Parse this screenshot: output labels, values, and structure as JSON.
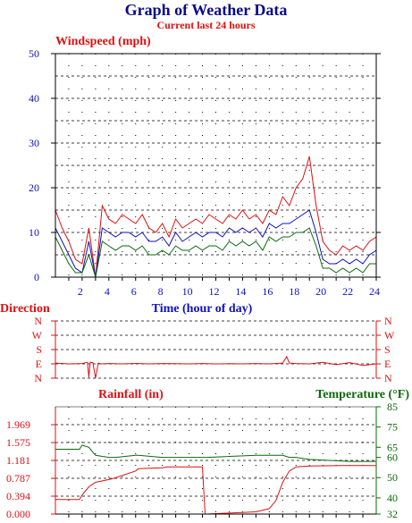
{
  "page": {
    "title": "Graph of Weather Data",
    "subtitle": "Current last 24 hours"
  },
  "colors": {
    "title": "#0a0a8a",
    "accent_red": "#dd1111",
    "blue": "#1010c0",
    "green": "#0a6a0a",
    "grid": "#000000"
  },
  "chart_data": [
    {
      "type": "line",
      "title": "Windspeed (mph)",
      "xlabel": "Time (hour of day)",
      "ylabel": "",
      "xlim": [
        0,
        24
      ],
      "ylim": [
        0,
        50
      ],
      "x_ticks": [
        2,
        4,
        6,
        8,
        10,
        12,
        14,
        16,
        18,
        20,
        22,
        24
      ],
      "y_ticks": [
        0,
        10,
        20,
        30,
        40,
        50
      ],
      "grid": true,
      "x": [
        0.0,
        0.5,
        1.0,
        1.5,
        2.0,
        2.5,
        3.0,
        3.5,
        4.0,
        4.5,
        5.0,
        5.5,
        6.0,
        6.5,
        7.0,
        7.5,
        8.0,
        8.5,
        9.0,
        9.5,
        10.0,
        10.5,
        11.0,
        11.5,
        12.0,
        12.5,
        13.0,
        13.5,
        14.0,
        14.5,
        15.0,
        15.5,
        16.0,
        16.5,
        17.0,
        17.5,
        18.0,
        18.5,
        19.0,
        19.5,
        20.0,
        20.5,
        21.0,
        21.5,
        22.0,
        22.5,
        23.0,
        23.5,
        24.0
      ],
      "series": [
        {
          "color": "red",
          "values": [
            15,
            11,
            8,
            4,
            3,
            11,
            0,
            16,
            13,
            12,
            14,
            13,
            12,
            14,
            11,
            10,
            12,
            9,
            13,
            11,
            12,
            13,
            12,
            14,
            13,
            12,
            14,
            13,
            15,
            13,
            14,
            12,
            15,
            14,
            18,
            16,
            20,
            22,
            27,
            16,
            8,
            6,
            5,
            7,
            6,
            7,
            6,
            8,
            9
          ]
        },
        {
          "color": "blue",
          "values": [
            11,
            8,
            5,
            2,
            1,
            8,
            0,
            11,
            10,
            9,
            10,
            10,
            9,
            10,
            8,
            8,
            9,
            7,
            10,
            8,
            9,
            10,
            9,
            10,
            10,
            9,
            11,
            10,
            11,
            10,
            11,
            9,
            12,
            11,
            12,
            12,
            13,
            14,
            15,
            10,
            4,
            3,
            3,
            4,
            3,
            4,
            3,
            5,
            6
          ]
        },
        {
          "color": "green",
          "values": [
            9,
            6,
            3,
            1,
            1,
            5,
            0,
            8,
            7,
            6,
            7,
            7,
            6,
            7,
            5,
            5,
            6,
            5,
            7,
            6,
            6,
            7,
            6,
            7,
            7,
            6,
            8,
            7,
            8,
            7,
            8,
            6,
            9,
            8,
            9,
            9,
            10,
            10,
            11,
            7,
            2,
            2,
            1,
            2,
            1,
            2,
            1,
            3,
            3
          ]
        }
      ]
    },
    {
      "type": "line",
      "title": "Direction",
      "ylabel": "",
      "y_ticks": [
        "N",
        "W",
        "S",
        "E",
        "N"
      ],
      "xlim": [
        0,
        24
      ],
      "grid": true,
      "x": [
        0.0,
        1.0,
        2.0,
        2.4,
        2.5,
        2.6,
        2.8,
        3.0,
        3.2,
        3.4,
        4.0,
        5.0,
        6.0,
        7.0,
        8.0,
        9.0,
        10.0,
        11.0,
        12.0,
        13.0,
        14.0,
        15.0,
        16.0,
        17.0,
        17.3,
        17.5,
        18.0,
        19.0,
        20.0,
        21.0,
        22.0,
        23.0,
        24.0
      ],
      "series": [
        {
          "color": "red",
          "values_deg": [
            95,
            90,
            92,
            100,
            5,
            100,
            98,
            0,
            95,
            90,
            92,
            90,
            93,
            90,
            92,
            91,
            90,
            92,
            90,
            91,
            90,
            92,
            90,
            95,
            135,
            95,
            92,
            90,
            100,
            85,
            98,
            80,
            90
          ]
        }
      ]
    },
    {
      "type": "line",
      "title": "Rainfall (in)",
      "y2label": "Temperature (°F)",
      "xlim": [
        0,
        24
      ],
      "ylim": [
        0,
        2.363
      ],
      "y_ticks": [
        0.0,
        0.394,
        0.787,
        1.181,
        1.575,
        1.969
      ],
      "y_tick_labels": [
        "0.000",
        "0.394",
        "0.787",
        "1.181",
        "1.575",
        "1.969"
      ],
      "y2lim": [
        32,
        85
      ],
      "y2_ticks": [
        32,
        40,
        50,
        60,
        65,
        75,
        85
      ],
      "grid": true,
      "x": [
        0.0,
        1.8,
        2.0,
        2.5,
        3.0,
        4.0,
        4.5,
        6.0,
        6.2,
        8.0,
        8.4,
        11.0,
        11.2,
        11.3,
        15.0,
        16.0,
        16.5,
        17.0,
        17.5,
        18.0,
        19.0,
        22.0,
        24.0
      ],
      "series": [
        {
          "name": "Rainfall (in)",
          "color": "red",
          "values": [
            0.32,
            0.32,
            0.42,
            0.6,
            0.7,
            0.76,
            0.8,
            0.95,
            1.0,
            1.02,
            1.04,
            1.04,
            0.0,
            0.0,
            0.05,
            0.12,
            0.3,
            0.7,
            0.95,
            1.04,
            1.06,
            1.07,
            1.07
          ]
        },
        {
          "name": "Temperature (°F)",
          "color": "green",
          "values": [
            64,
            64,
            66,
            65,
            61,
            60,
            60,
            61,
            61,
            60,
            60,
            60,
            60,
            60,
            61,
            61,
            61,
            61,
            60,
            60,
            59,
            58,
            58
          ]
        }
      ]
    }
  ]
}
